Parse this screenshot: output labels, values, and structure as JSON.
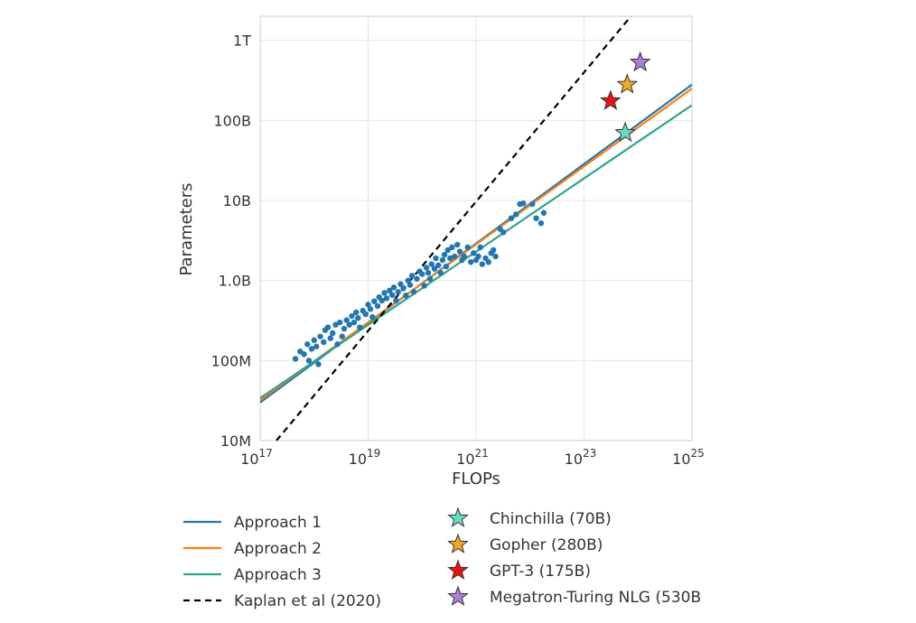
{
  "chart_data": {
    "type": "scatter",
    "title": "",
    "xlabel": "FLOPs",
    "ylabel": "Parameters",
    "x_scale": "log",
    "y_scale": "log",
    "xlim": [
      1e+17,
      1e+25
    ],
    "ylim": [
      10000000.0,
      2000000000000.0
    ],
    "grid": true,
    "x_ticks": [
      {
        "value": 1e+17,
        "base": "10",
        "exp": "17"
      },
      {
        "value": 1e+19,
        "base": "10",
        "exp": "19"
      },
      {
        "value": 1e+21,
        "base": "10",
        "exp": "21"
      },
      {
        "value": 1e+23,
        "base": "10",
        "exp": "23"
      },
      {
        "value": 1e+25,
        "base": "10",
        "exp": "25"
      }
    ],
    "y_ticks": [
      {
        "value": 10000000.0,
        "label": "10M"
      },
      {
        "value": 100000000.0,
        "label": "100M"
      },
      {
        "value": 1000000000.0,
        "label": "1.0B"
      },
      {
        "value": 10000000000.0,
        "label": "10B"
      },
      {
        "value": 100000000000.0,
        "label": "100B"
      },
      {
        "value": 1000000000000.0,
        "label": "1T"
      }
    ],
    "lines": [
      {
        "name": "Approach 1",
        "color": "#1f77b4",
        "style": "solid",
        "x": [
          1e+17,
          1e+25
        ],
        "y": [
          30000000.0,
          280000000000.0
        ]
      },
      {
        "name": "Approach 2",
        "color": "#ff7f0e",
        "style": "solid",
        "x": [
          1e+17,
          1e+25
        ],
        "y": [
          32000000.0,
          250000000000.0
        ]
      },
      {
        "name": "Approach 3",
        "color": "#2ca58d",
        "style": "solid",
        "x": [
          1e+17,
          1e+25
        ],
        "y": [
          34000000.0,
          155000000000.0
        ]
      },
      {
        "name": "Kaplan et al (2020)",
        "color": "#000000",
        "style": "dashed",
        "x": [
          2e+17,
          7.4e+23
        ],
        "y": [
          10000000.0,
          2000000000000.0
        ]
      }
    ],
    "models": [
      {
        "name": "Chinchilla (70B)",
        "color": "#66dcc3",
        "x": 5.8e+23,
        "y": 70000000000.0
      },
      {
        "name": "Gopher (280B)",
        "color": "#f5a623",
        "x": 6.3e+23,
        "y": 280000000000.0
      },
      {
        "name": "GPT-3 (175B)",
        "color": "#ee1111",
        "x": 3.1e+23,
        "y": 175000000000.0
      },
      {
        "name": "Megatron-Turing NLG (530B",
        "color": "#a97fdc",
        "x": 1.1e+24,
        "y": 530000000000.0
      }
    ],
    "scatter_color": "#1f77b4",
    "scatter_points": [
      [
        4.5e+17,
        105000000.0
      ],
      [
        5.5e+17,
        130000000.0
      ],
      [
        6.5e+17,
        120000000.0
      ],
      [
        7.5e+17,
        160000000.0
      ],
      [
        8e+17,
        100000000.0
      ],
      [
        9e+17,
        140000000.0
      ],
      [
        1e+18,
        180000000.0
      ],
      [
        1.1e+18,
        150000000.0
      ],
      [
        1.2e+18,
        90000000.0
      ],
      [
        1.3e+18,
        200000000.0
      ],
      [
        1.5e+18,
        170000000.0
      ],
      [
        1.6e+18,
        240000000.0
      ],
      [
        1.8e+18,
        260000000.0
      ],
      [
        2e+18,
        190000000.0
      ],
      [
        2.2e+18,
        220000000.0
      ],
      [
        2.5e+18,
        280000000.0
      ],
      [
        2.7e+18,
        160000000.0
      ],
      [
        3e+18,
        300000000.0
      ],
      [
        3.3e+18,
        200000000.0
      ],
      [
        3.6e+18,
        250000000.0
      ],
      [
        4e+18,
        320000000.0
      ],
      [
        4.5e+18,
        280000000.0
      ],
      [
        5e+18,
        360000000.0
      ],
      [
        5.5e+18,
        300000000.0
      ],
      [
        6e+18,
        400000000.0
      ],
      [
        6.5e+18,
        340000000.0
      ],
      [
        7e+18,
        260000000.0
      ],
      [
        8e+18,
        420000000.0
      ],
      [
        9e+18,
        380000000.0
      ],
      [
        1e+19,
        500000000.0
      ],
      [
        1.1e+19,
        440000000.0
      ],
      [
        1.2e+19,
        350000000.0
      ],
      [
        1.3e+19,
        550000000.0
      ],
      [
        1.5e+19,
        480000000.0
      ],
      [
        1.6e+19,
        620000000.0
      ],
      [
        1.8e+19,
        560000000.0
      ],
      [
        2e+19,
        700000000.0
      ],
      [
        2.2e+19,
        600000000.0
      ],
      [
        2.5e+19,
        750000000.0
      ],
      [
        2.8e+19,
        660000000.0
      ],
      [
        3e+19,
        820000000.0
      ],
      [
        3.3e+19,
        560000000.0
      ],
      [
        3.6e+19,
        720000000.0
      ],
      [
        4e+19,
        900000000.0
      ],
      [
        4.5e+19,
        800000000.0
      ],
      [
        5e+19,
        650000000.0
      ],
      [
        5.5e+19,
        1000000000.0
      ],
      [
        6e+19,
        880000000.0
      ],
      [
        6.5e+19,
        1150000000.0
      ],
      [
        7e+19,
        720000000.0
      ],
      [
        8e+19,
        1050000000.0
      ],
      [
        9e+19,
        1300000000.0
      ],
      [
        1e+20,
        1200000000.0
      ],
      [
        1.1e+20,
        860000000.0
      ],
      [
        1.2e+20,
        1450000000.0
      ],
      [
        1.3e+20,
        1250000000.0
      ],
      [
        1.4e+20,
        1050000000.0
      ],
      [
        1.5e+20,
        1600000000.0
      ],
      [
        1.7e+20,
        1400000000.0
      ],
      [
        1.8e+20,
        1900000000.0
      ],
      [
        2e+20,
        1550000000.0
      ],
      [
        2.2e+20,
        1250000000.0
      ],
      [
        2.4e+20,
        1800000000.0
      ],
      [
        2.6e+20,
        2100000000.0
      ],
      [
        2.8e+20,
        1500000000.0
      ],
      [
        3e+20,
        2400000000.0
      ],
      [
        3.3e+20,
        1900000000.0
      ],
      [
        3.6e+20,
        2600000000.0
      ],
      [
        4e+20,
        2000000000.0
      ],
      [
        4.5e+20,
        2800000000.0
      ],
      [
        5e+20,
        2300000000.0
      ],
      [
        5.5e+20,
        1800000000.0
      ],
      [
        6e+20,
        2000000000.0
      ],
      [
        7e+20,
        2600000000.0
      ],
      [
        8e+20,
        1700000000.0
      ],
      [
        9e+20,
        2200000000.0
      ],
      [
        1e+21,
        1800000000.0
      ],
      [
        1.1e+21,
        2000000000.0
      ],
      [
        1.2e+21,
        2600000000.0
      ],
      [
        1.3e+21,
        1600000000.0
      ],
      [
        1.5e+21,
        1900000000.0
      ],
      [
        1.7e+21,
        1700000000.0
      ],
      [
        1.9e+21,
        2200000000.0
      ],
      [
        2.1e+21,
        2400000000.0
      ],
      [
        2.3e+21,
        2000000000.0
      ],
      [
        2.8e+21,
        4400000000.0
      ],
      [
        3.2e+21,
        4000000000.0
      ],
      [
        4.5e+21,
        6000000000.0
      ],
      [
        5.5e+21,
        6700000000.0
      ],
      [
        6.5e+21,
        9000000000.0
      ],
      [
        7.5e+21,
        9200000000.0
      ],
      [
        1.1e+22,
        9000000000.0
      ],
      [
        1.3e+22,
        6000000000.0
      ],
      [
        1.6e+22,
        5200000000.0
      ],
      [
        1.8e+22,
        7000000000.0
      ]
    ]
  }
}
